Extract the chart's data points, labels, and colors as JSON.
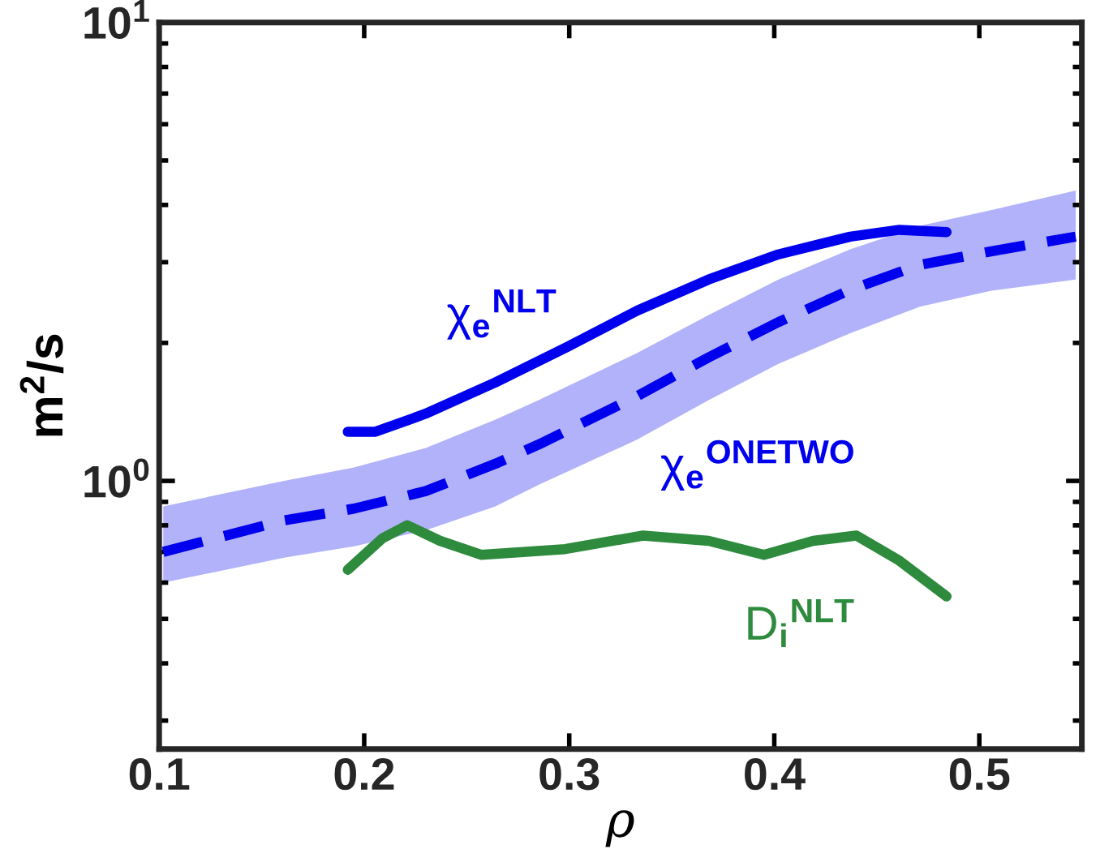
{
  "chart_data": {
    "type": "line",
    "xlabel": "ρ",
    "ylabel": "m$^{2}$/s",
    "log": "y",
    "xlim": [
      0.1,
      0.55
    ],
    "xticks": [
      0.1,
      0.2,
      0.3,
      0.4,
      0.5
    ],
    "ylim": [
      0.26,
      10
    ],
    "yticks": [
      {
        "value": 1,
        "label": "10$^{0}$"
      },
      {
        "value": 10,
        "label": "10$^{1}$"
      }
    ],
    "grid": false,
    "legend": false,
    "marker": "none",
    "series": [
      {
        "name": "χ$_{e}$$^{ONETWO}$",
        "color": "#0000ee",
        "line_style": "dashed",
        "x": [
          0.102,
          0.161,
          0.195,
          0.23,
          0.264,
          0.285,
          0.333,
          0.368,
          0.402,
          0.437,
          0.471,
          0.506,
          0.547
        ],
        "values": [
          0.7,
          0.82,
          0.87,
          0.95,
          1.09,
          1.2,
          1.53,
          1.86,
          2.22,
          2.61,
          2.96,
          3.17,
          3.41
        ],
        "upper": [
          0.88,
          1.0,
          1.07,
          1.18,
          1.36,
          1.5,
          1.9,
          2.3,
          2.75,
          3.2,
          3.6,
          3.9,
          4.3
        ],
        "lower": [
          0.6,
          0.68,
          0.72,
          0.78,
          0.88,
          0.98,
          1.23,
          1.5,
          1.8,
          2.1,
          2.4,
          2.6,
          2.75
        ]
      },
      {
        "name": "χ$_{e}$$^{NLT}$",
        "color": "#0000ee",
        "line_style": "solid",
        "x": [
          0.192,
          0.2055,
          0.2297,
          0.264,
          0.299,
          0.333,
          0.368,
          0.402,
          0.437,
          0.461,
          0.484
        ],
        "values": [
          1.28,
          1.28,
          1.4,
          1.64,
          1.96,
          2.35,
          2.75,
          3.12,
          3.41,
          3.53,
          3.49
        ]
      },
      {
        "name": "D$_{i}$$^{NLT}$",
        "color": "#2e8b3e",
        "line_style": "solid",
        "x": [
          0.192,
          0.209,
          0.221,
          0.237,
          0.257,
          0.298,
          0.336,
          0.368,
          0.395,
          0.419,
          0.44,
          0.461,
          0.484
        ],
        "values": [
          0.64,
          0.75,
          0.8,
          0.74,
          0.69,
          0.71,
          0.76,
          0.74,
          0.69,
          0.74,
          0.76,
          0.67,
          0.56
        ]
      }
    ]
  }
}
